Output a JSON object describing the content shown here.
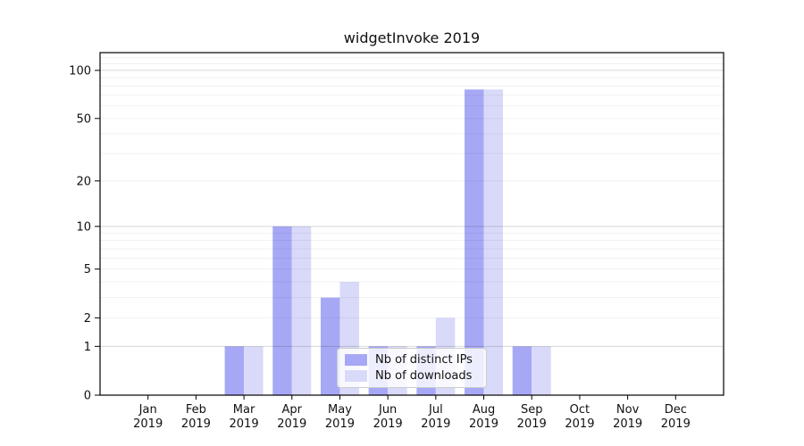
{
  "title": "widgetInvoke 2019",
  "chart_data": {
    "type": "bar",
    "title": "widgetInvoke 2019",
    "categories": [
      "Jan 2019",
      "Feb 2019",
      "Mar 2019",
      "Apr 2019",
      "May 2019",
      "Jun 2019",
      "Jul 2019",
      "Aug 2019",
      "Sep 2019",
      "Oct 2019",
      "Nov 2019",
      "Dec 2019"
    ],
    "months": [
      "Jan",
      "Feb",
      "Mar",
      "Apr",
      "May",
      "Jun",
      "Jul",
      "Aug",
      "Sep",
      "Oct",
      "Nov",
      "Dec"
    ],
    "year_label": "2019",
    "series": [
      {
        "name": "Nb of distinct IPs",
        "color": "#a7a8f5",
        "values": [
          0,
          0,
          1,
          10,
          3,
          1,
          1,
          76,
          1,
          0,
          0,
          0
        ]
      },
      {
        "name": "Nb of downloads",
        "color": "#d9daf9",
        "values": [
          0,
          0,
          1,
          10,
          4,
          1,
          2,
          76,
          1,
          0,
          0,
          0
        ]
      }
    ],
    "yticks": [
      0,
      1,
      2,
      5,
      10,
      20,
      50,
      100
    ],
    "minor_gridlines": [
      2,
      3,
      4,
      5,
      6,
      7,
      8,
      9,
      20,
      30,
      40,
      50,
      60,
      70,
      80,
      90,
      110,
      120
    ],
    "major_gridlines": [
      1,
      10,
      100
    ],
    "scale": "log10(1+y)",
    "ylim": [
      0,
      129
    ],
    "grid": true,
    "legend_position": "lower-center",
    "axis_color": "#000000",
    "text_color": "#111111"
  }
}
